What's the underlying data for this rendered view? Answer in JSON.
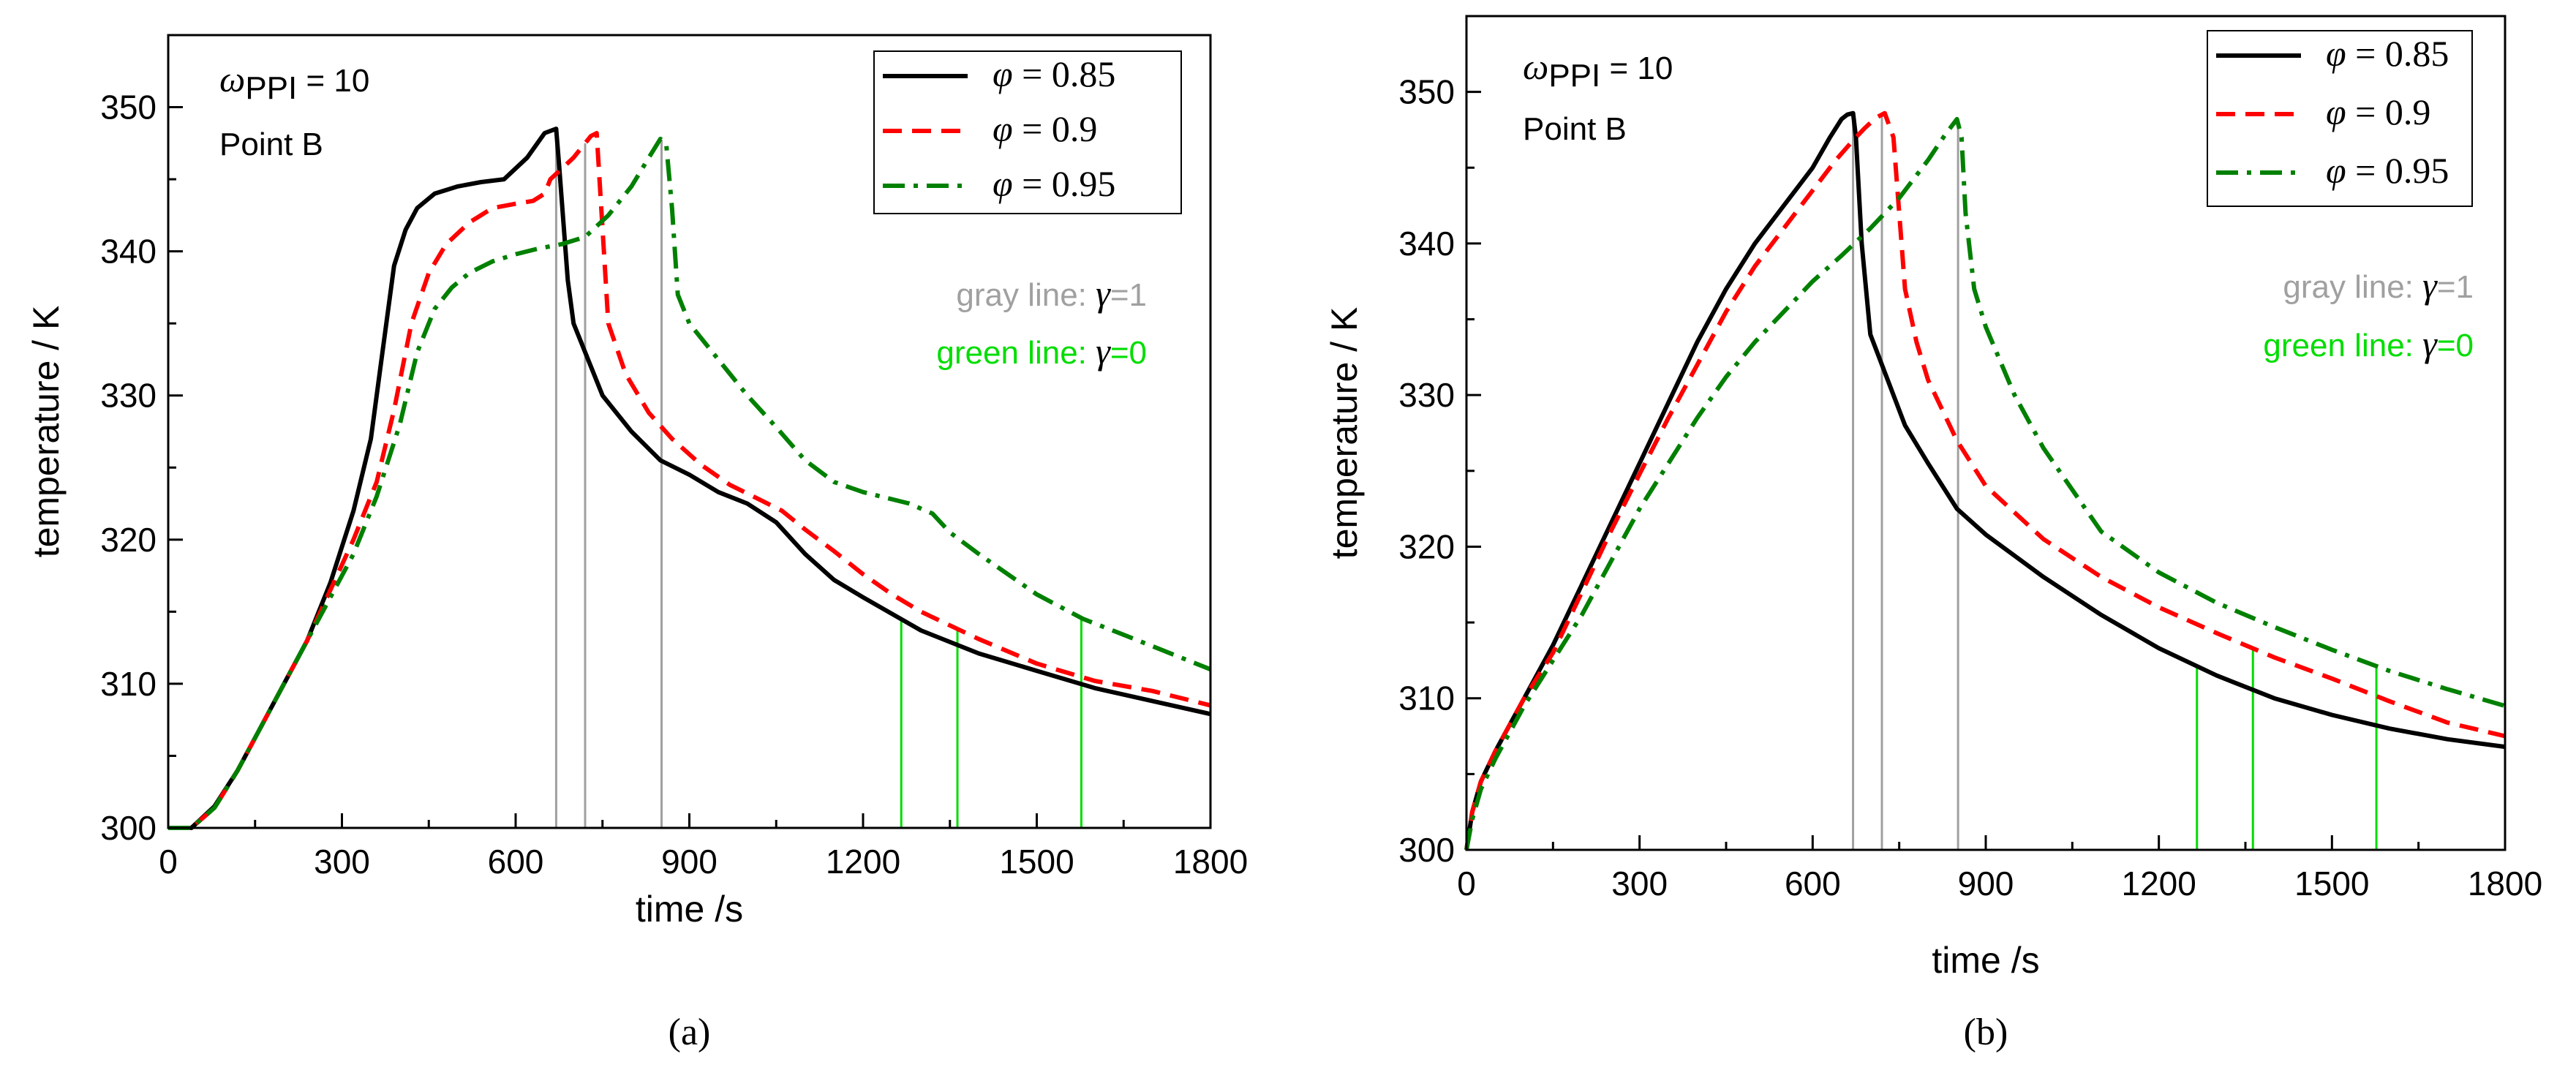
{
  "colors": {
    "phi085": "#000000",
    "phi09": "#ff0000",
    "phi095": "#008000",
    "gray_line": "#a0a0a0",
    "green_line": "#00dd00"
  },
  "chart_data": [
    {
      "type": "line",
      "panel": "(a)",
      "caption": "(a)",
      "xlabel": "time /s",
      "ylabel": "temperature / K",
      "xlim": [
        0,
        1800
      ],
      "ylim": [
        300,
        355
      ],
      "xticks": [
        0,
        300,
        600,
        900,
        1200,
        1500,
        1800
      ],
      "yticks": [
        300,
        310,
        320,
        330,
        340,
        350
      ],
      "annotation": {
        "omega": "ω",
        "omega_sub": "PPI",
        "omega_value": " = 10",
        "point": "Point B"
      },
      "legend": [
        {
          "sym": "φ",
          "text": " = 0.85",
          "series": 0
        },
        {
          "sym": "φ",
          "text": " = 0.9",
          "series": 1
        },
        {
          "sym": "φ",
          "text": " = 0.95",
          "series": 2
        }
      ],
      "notes": {
        "gray_prefix": "gray   line: ",
        "gray_sym": "γ",
        "gray_val": "=1",
        "green_prefix": "green line: ",
        "green_sym": "γ",
        "green_val": "=0"
      },
      "series": [
        {
          "name": "φ = 0.85",
          "style": "solid",
          "colorKey": "phi085",
          "x": [
            0,
            40,
            80,
            120,
            160,
            200,
            240,
            280,
            320,
            350,
            370,
            390,
            410,
            430,
            460,
            500,
            540,
            580,
            620,
            650,
            670,
            675,
            690,
            700,
            750,
            800,
            850,
            900,
            950,
            1000,
            1050,
            1100,
            1150,
            1200,
            1300,
            1400,
            1500,
            1600,
            1700,
            1800
          ],
          "y": [
            300,
            300,
            301.5,
            304,
            307,
            310,
            313,
            317,
            322,
            327,
            333,
            339,
            341.5,
            343,
            344,
            344.5,
            344.8,
            345,
            346.5,
            348.2,
            348.5,
            346,
            338,
            335,
            330,
            327.5,
            325.5,
            324.5,
            323.3,
            322.5,
            321.2,
            319,
            317.2,
            316,
            313.7,
            312.1,
            310.9,
            309.7,
            308.8,
            307.9
          ]
        },
        {
          "name": "φ = 0.9",
          "style": "dashed",
          "colorKey": "phi09",
          "x": [
            0,
            40,
            80,
            120,
            160,
            200,
            240,
            280,
            320,
            360,
            390,
            420,
            450,
            480,
            520,
            560,
            600,
            630,
            650,
            660,
            700,
            720,
            730,
            740,
            760,
            790,
            830,
            870,
            920,
            970,
            1020,
            1060,
            1100,
            1150,
            1200,
            1250,
            1300,
            1400,
            1500,
            1600,
            1700,
            1800
          ],
          "y": [
            300,
            300,
            301.4,
            304,
            307,
            310,
            313,
            316.5,
            320,
            324,
            329,
            335,
            338.5,
            340.5,
            342,
            343,
            343.3,
            343.5,
            344,
            345,
            346.5,
            347.5,
            348,
            348.2,
            335,
            331.5,
            328.8,
            327,
            325.2,
            323.8,
            322.8,
            322,
            320.7,
            319.2,
            317.6,
            316.2,
            315,
            313.1,
            311.4,
            310.2,
            309.5,
            308.5
          ]
        },
        {
          "name": "φ = 0.95",
          "style": "dashdot",
          "colorKey": "phi095",
          "x": [
            0,
            40,
            80,
            120,
            160,
            200,
            240,
            280,
            320,
            360,
            400,
            430,
            460,
            490,
            520,
            560,
            600,
            640,
            680,
            720,
            760,
            800,
            830,
            850,
            860,
            870,
            880,
            900,
            950,
            1000,
            1050,
            1100,
            1150,
            1200,
            1250,
            1280,
            1320,
            1350,
            1400,
            1500,
            1580,
            1650,
            1800
          ],
          "y": [
            300,
            300,
            301.4,
            304,
            307,
            310,
            313,
            316,
            319,
            323,
            328,
            333,
            336,
            337.5,
            338.5,
            339.3,
            339.8,
            340.2,
            340.5,
            341,
            342.5,
            344.5,
            346.5,
            347.8,
            347.5,
            343,
            337,
            335,
            332.5,
            330,
            327.8,
            325.5,
            324,
            323.3,
            322.8,
            322.5,
            321.8,
            320.5,
            319,
            316.2,
            314.5,
            313.4,
            311
          ]
        }
      ],
      "gray_lines_x": [
        670,
        720,
        852
      ],
      "green_lines_x": [
        1266,
        1363,
        1577
      ]
    },
    {
      "type": "line",
      "panel": "(b)",
      "caption": "(b)",
      "xlabel": "time /s",
      "ylabel": "temperature / K",
      "xlim": [
        0,
        1800
      ],
      "ylim": [
        300,
        355
      ],
      "xticks": [
        0,
        300,
        600,
        900,
        1200,
        1500,
        1800
      ],
      "yticks": [
        300,
        310,
        320,
        330,
        340,
        350
      ],
      "annotation": {
        "omega": "ω",
        "omega_sub": "PPI",
        "omega_value": " = 10",
        "point": "Point B"
      },
      "legend": [
        {
          "sym": "φ",
          "text": " = 0.85",
          "series": 0
        },
        {
          "sym": "φ",
          "text": " = 0.9",
          "series": 1
        },
        {
          "sym": "φ",
          "text": " = 0.95",
          "series": 2
        }
      ],
      "notes": {
        "gray_prefix": "gray   line: ",
        "gray_sym": "γ",
        "gray_val": "=1",
        "green_prefix": "green line: ",
        "green_sym": "γ",
        "green_val": "=0"
      },
      "series": [
        {
          "name": "φ = 0.85",
          "style": "solid",
          "colorKey": "phi085",
          "x": [
            0,
            10,
            25,
            50,
            100,
            150,
            200,
            250,
            300,
            350,
            400,
            450,
            500,
            550,
            600,
            630,
            650,
            660,
            670,
            675,
            685,
            700,
            720,
            760,
            800,
            850,
            900,
            1000,
            1100,
            1200,
            1300,
            1400,
            1500,
            1600,
            1700,
            1800
          ],
          "y": [
            300,
            302.5,
            304.5,
            306.5,
            310,
            313.5,
            317.5,
            321.5,
            325.5,
            329.5,
            333.5,
            337,
            340,
            342.5,
            345,
            347,
            348.2,
            348.5,
            348.6,
            347,
            340,
            334,
            332,
            328,
            325.5,
            322.5,
            320.8,
            318,
            315.5,
            313.3,
            311.5,
            310,
            308.9,
            308,
            307.3,
            306.8
          ]
        },
        {
          "name": "φ = 0.9",
          "style": "dashed",
          "colorKey": "phi09",
          "x": [
            0,
            10,
            25,
            50,
            100,
            150,
            200,
            250,
            300,
            350,
            400,
            450,
            500,
            550,
            600,
            640,
            670,
            690,
            710,
            725,
            740,
            750,
            760,
            780,
            800,
            850,
            900,
            1000,
            1100,
            1200,
            1300,
            1400,
            1500,
            1600,
            1700,
            1800
          ],
          "y": [
            300,
            302.5,
            304.5,
            306.5,
            310,
            313,
            317,
            321,
            324.8,
            328.5,
            332,
            335.5,
            338.5,
            341,
            343.5,
            345.5,
            346.8,
            347.6,
            348.3,
            348.6,
            347,
            342,
            337,
            333.5,
            331,
            327,
            324,
            320.5,
            318,
            316,
            314.3,
            312.7,
            311.3,
            309.8,
            308.4,
            307.5
          ]
        },
        {
          "name": "φ = 0.95",
          "style": "dashdot",
          "colorKey": "phi095",
          "x": [
            0,
            10,
            25,
            50,
            100,
            150,
            200,
            250,
            300,
            350,
            400,
            450,
            500,
            550,
            600,
            650,
            700,
            750,
            800,
            830,
            850,
            858,
            865,
            880,
            900,
            950,
            1000,
            1100,
            1200,
            1300,
            1400,
            1500,
            1600,
            1700,
            1800
          ],
          "y": [
            300,
            302,
            304,
            306,
            309.5,
            312.5,
            315.5,
            319,
            322.5,
            325.5,
            328.5,
            331.2,
            333.5,
            335.5,
            337.5,
            339.2,
            341,
            343,
            345.5,
            347.2,
            348.2,
            347,
            342,
            337,
            334.5,
            330,
            326.5,
            321,
            318.3,
            316.3,
            314.7,
            313.2,
            311.8,
            310.6,
            309.5
          ]
        }
      ],
      "gray_lines_x": [
        670,
        720,
        852
      ],
      "green_lines_x": [
        1266,
        1363,
        1577
      ]
    }
  ]
}
